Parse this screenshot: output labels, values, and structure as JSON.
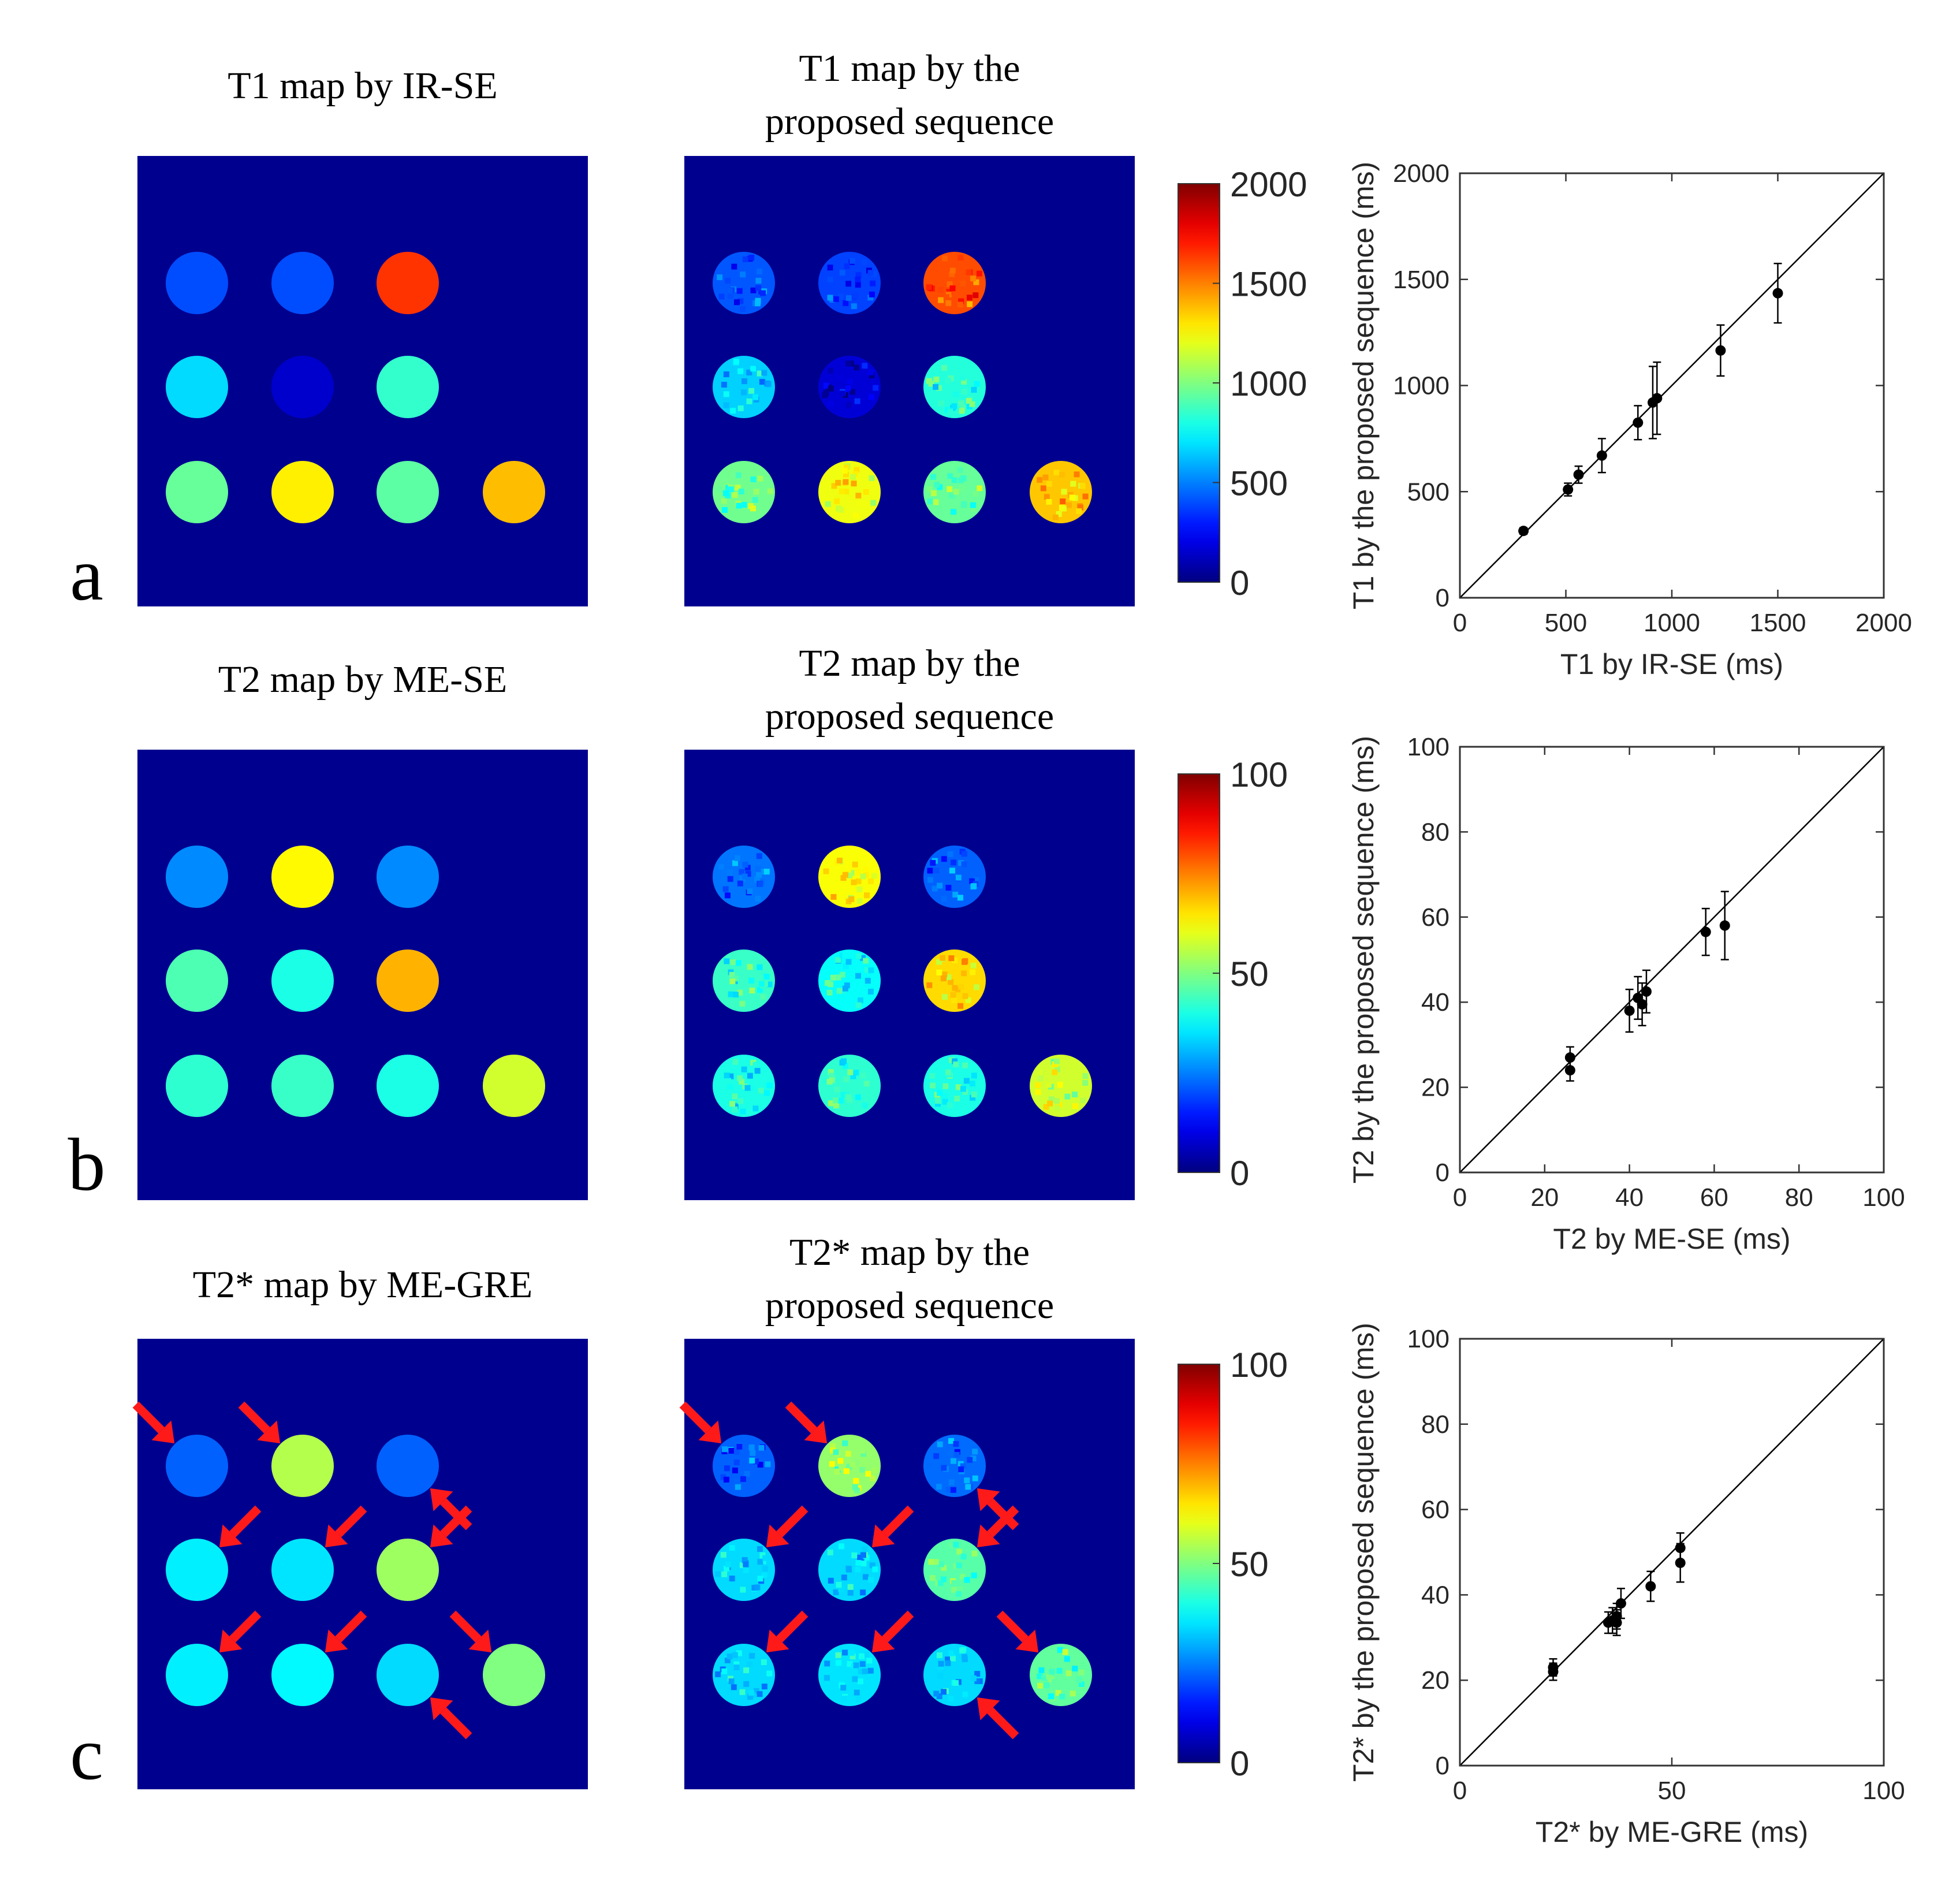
{
  "rows": [
    {
      "letter": "a",
      "left_title": [
        "T1 map by IR-SE"
      ],
      "mid_title": [
        "T1 map by the",
        "proposed sequence"
      ],
      "colorbar": {
        "ticks": [
          "2000",
          "1500",
          "1000",
          "500",
          "0"
        ],
        "max": 2000
      },
      "phantom_left": [
        [
          400,
          400,
          1650,
          null
        ],
        [
          680,
          150,
          850,
          null
        ],
        [
          950,
          1280,
          930,
          1380
        ]
      ],
      "phantom_mid": [
        [
          420,
          380,
          1600,
          null
        ],
        [
          660,
          170,
          820,
          null
        ],
        [
          970,
          1220,
          950,
          1360
        ]
      ],
      "arrows": false
    },
    {
      "letter": "b",
      "left_title": [
        "T2 map by ME-SE"
      ],
      "mid_title": [
        "T2 map by the",
        "proposed sequence"
      ],
      "colorbar": {
        "ticks": [
          "100",
          "50",
          "0"
        ],
        "max": 100
      },
      "phantom_left": [
        [
          26,
          63,
          26,
          null
        ],
        [
          45,
          40,
          70,
          null
        ],
        [
          42,
          43,
          40,
          58
        ]
      ],
      "phantom_mid": [
        [
          24,
          62,
          22,
          null
        ],
        [
          43,
          38,
          66,
          null
        ],
        [
          40,
          42,
          40,
          58
        ]
      ],
      "arrows": false
    },
    {
      "letter": "c",
      "left_title": [
        "T2* map by ME-GRE"
      ],
      "mid_title": [
        "T2* map by the",
        "proposed sequence"
      ],
      "colorbar": {
        "ticks": [
          "100",
          "50",
          "0"
        ],
        "max": 100
      },
      "phantom_left": [
        [
          22,
          55,
          22,
          null
        ],
        [
          36,
          35,
          53,
          null
        ],
        [
          36,
          37,
          34,
          50
        ]
      ],
      "phantom_mid": [
        [
          22,
          52,
          23,
          null
        ],
        [
          34,
          34,
          46,
          null
        ],
        [
          34,
          35,
          34,
          47
        ]
      ],
      "arrows": true
    }
  ],
  "chart_data": [
    {
      "type": "scatter",
      "xlabel": "T1 by IR-SE (ms)",
      "ylabel": "T1 by the proposed sequence (ms)",
      "xlim": [
        0,
        2000
      ],
      "ylim": [
        0,
        2000
      ],
      "xticks": [
        0,
        500,
        1000,
        1500,
        2000
      ],
      "yticks": [
        0,
        500,
        1000,
        1500,
        2000
      ],
      "identity_line": true,
      "points": [
        {
          "x": 300,
          "y": 315,
          "err": 15
        },
        {
          "x": 510,
          "y": 510,
          "err": 30
        },
        {
          "x": 560,
          "y": 580,
          "err": 40
        },
        {
          "x": 670,
          "y": 670,
          "err": 80
        },
        {
          "x": 840,
          "y": 825,
          "err": 80
        },
        {
          "x": 910,
          "y": 920,
          "err": 170
        },
        {
          "x": 930,
          "y": 940,
          "err": 170
        },
        {
          "x": 1230,
          "y": 1165,
          "err": 120
        },
        {
          "x": 1500,
          "y": 1435,
          "err": 140
        }
      ]
    },
    {
      "type": "scatter",
      "xlabel": "T2 by ME-SE (ms)",
      "ylabel": "T2 by the proposed sequence (ms)",
      "xlim": [
        0,
        100
      ],
      "ylim": [
        0,
        100
      ],
      "xticks": [
        0,
        20,
        40,
        60,
        80,
        100
      ],
      "yticks": [
        0,
        20,
        40,
        60,
        80,
        100
      ],
      "identity_line": true,
      "points": [
        {
          "x": 26,
          "y": 27,
          "err": 2.5
        },
        {
          "x": 26,
          "y": 24,
          "err": 2.5
        },
        {
          "x": 40,
          "y": 38,
          "err": 5
        },
        {
          "x": 42,
          "y": 41,
          "err": 5
        },
        {
          "x": 43,
          "y": 39.5,
          "err": 5
        },
        {
          "x": 44,
          "y": 42.5,
          "err": 5
        },
        {
          "x": 58,
          "y": 56.5,
          "err": 5.5
        },
        {
          "x": 62.5,
          "y": 58,
          "err": 8
        }
      ]
    },
    {
      "type": "scatter",
      "xlabel": "T2* by ME-GRE (ms)",
      "ylabel": "T2* by the proposed sequence (ms)",
      "xlim": [
        0,
        100
      ],
      "ylim": [
        0,
        100
      ],
      "xticks": [
        0,
        50,
        100
      ],
      "yticks": [
        0,
        20,
        40,
        60,
        80,
        100
      ],
      "identity_line": true,
      "points": [
        {
          "x": 22,
          "y": 22,
          "err": 2
        },
        {
          "x": 22,
          "y": 23,
          "err": 2
        },
        {
          "x": 35,
          "y": 33.5,
          "err": 2.5
        },
        {
          "x": 36,
          "y": 34,
          "err": 3
        },
        {
          "x": 37,
          "y": 33.5,
          "err": 3
        },
        {
          "x": 37,
          "y": 35,
          "err": 3
        },
        {
          "x": 38,
          "y": 38,
          "err": 3.5
        },
        {
          "x": 45,
          "y": 42,
          "err": 3.5
        },
        {
          "x": 52,
          "y": 51,
          "err": 3.5
        },
        {
          "x": 52,
          "y": 47.5,
          "err": 4.5
        }
      ]
    }
  ]
}
